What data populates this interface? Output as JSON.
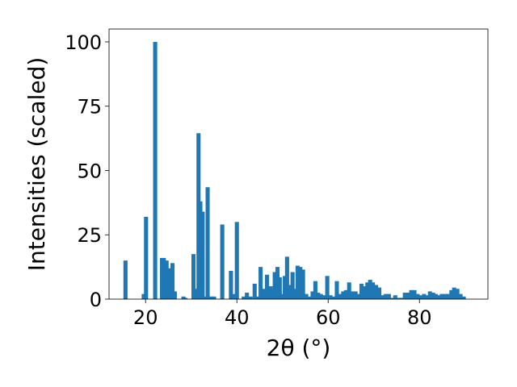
{
  "chart_data": {
    "type": "bar",
    "title": "",
    "xlabel": "2θ (°)",
    "ylabel": "Intensities (scaled)",
    "xlim": [
      12,
      95
    ],
    "ylim": [
      0,
      105
    ],
    "x_ticks": [
      "20",
      "40",
      "60",
      "80"
    ],
    "y_ticks": [
      "0",
      "25",
      "50",
      "75",
      "100"
    ],
    "bar_width": 0.9,
    "grid": false,
    "legend": "none",
    "color": "#1f77b4",
    "series": [
      {
        "x": [
          15.6,
          19.6,
          20.1,
          22.1,
          23.6,
          24.0,
          24.6,
          25.4,
          25.9,
          26.4,
          28.3,
          28.7,
          30.5,
          31.1,
          31.6,
          32.0,
          32.5,
          33.0,
          33.6,
          34.4,
          35.0,
          36.8,
          38.7,
          39.3,
          40.0,
          41.5,
          42.2,
          43.0,
          43.9,
          44.5,
          45.2,
          45.9,
          46.6,
          47.4,
          47.9,
          48.3,
          48.9,
          49.4,
          49.9,
          50.5,
          51.0,
          51.5,
          52.2,
          52.8,
          53.3,
          53.9,
          54.5,
          55.2,
          55.9,
          56.6,
          57.2,
          57.8,
          58.4,
          59.2,
          59.8,
          60.5,
          61.2,
          61.9,
          62.6,
          63.3,
          63.9,
          64.6,
          65.3,
          66.0,
          66.6,
          67.3,
          67.9,
          68.6,
          69.2,
          69.8,
          70.5,
          71.2,
          71.9,
          72.6,
          73.3,
          74.0,
          74.7,
          75.4,
          76.1,
          76.8,
          77.5,
          78.2,
          78.9,
          79.6,
          80.3,
          81.0,
          81.6,
          82.3,
          83.0,
          83.6,
          84.3,
          84.9,
          85.6,
          86.3,
          87.0,
          87.6,
          88.3,
          89.0,
          89.7
        ],
        "values": [
          15,
          2,
          32,
          100,
          16,
          16,
          15,
          12,
          14,
          3,
          1,
          0.5,
          17.5,
          4,
          64.5,
          38,
          34,
          1,
          43.5,
          1,
          1,
          29,
          11,
          2,
          30,
          1,
          2.5,
          1,
          6,
          1,
          12.5,
          4,
          9.5,
          5,
          3,
          10.5,
          12.5,
          8.5,
          2,
          9,
          16.5,
          5.5,
          10.5,
          4,
          13,
          12.5,
          11.5,
          2,
          1,
          3,
          7,
          2.5,
          2,
          1.5,
          9,
          1.5,
          1,
          7,
          2,
          3,
          3.5,
          6.5,
          3,
          3,
          2,
          6,
          5,
          6.5,
          7.5,
          6.5,
          5.5,
          4.5,
          1.5,
          2,
          2,
          0.5,
          1.5,
          0.5,
          0.5,
          2.5,
          2.5,
          3.5,
          3.5,
          2,
          1.5,
          2,
          1.5,
          3,
          2.5,
          2,
          1.5,
          2,
          2,
          2,
          3.5,
          4.5,
          4,
          2,
          1
        ]
      }
    ]
  }
}
